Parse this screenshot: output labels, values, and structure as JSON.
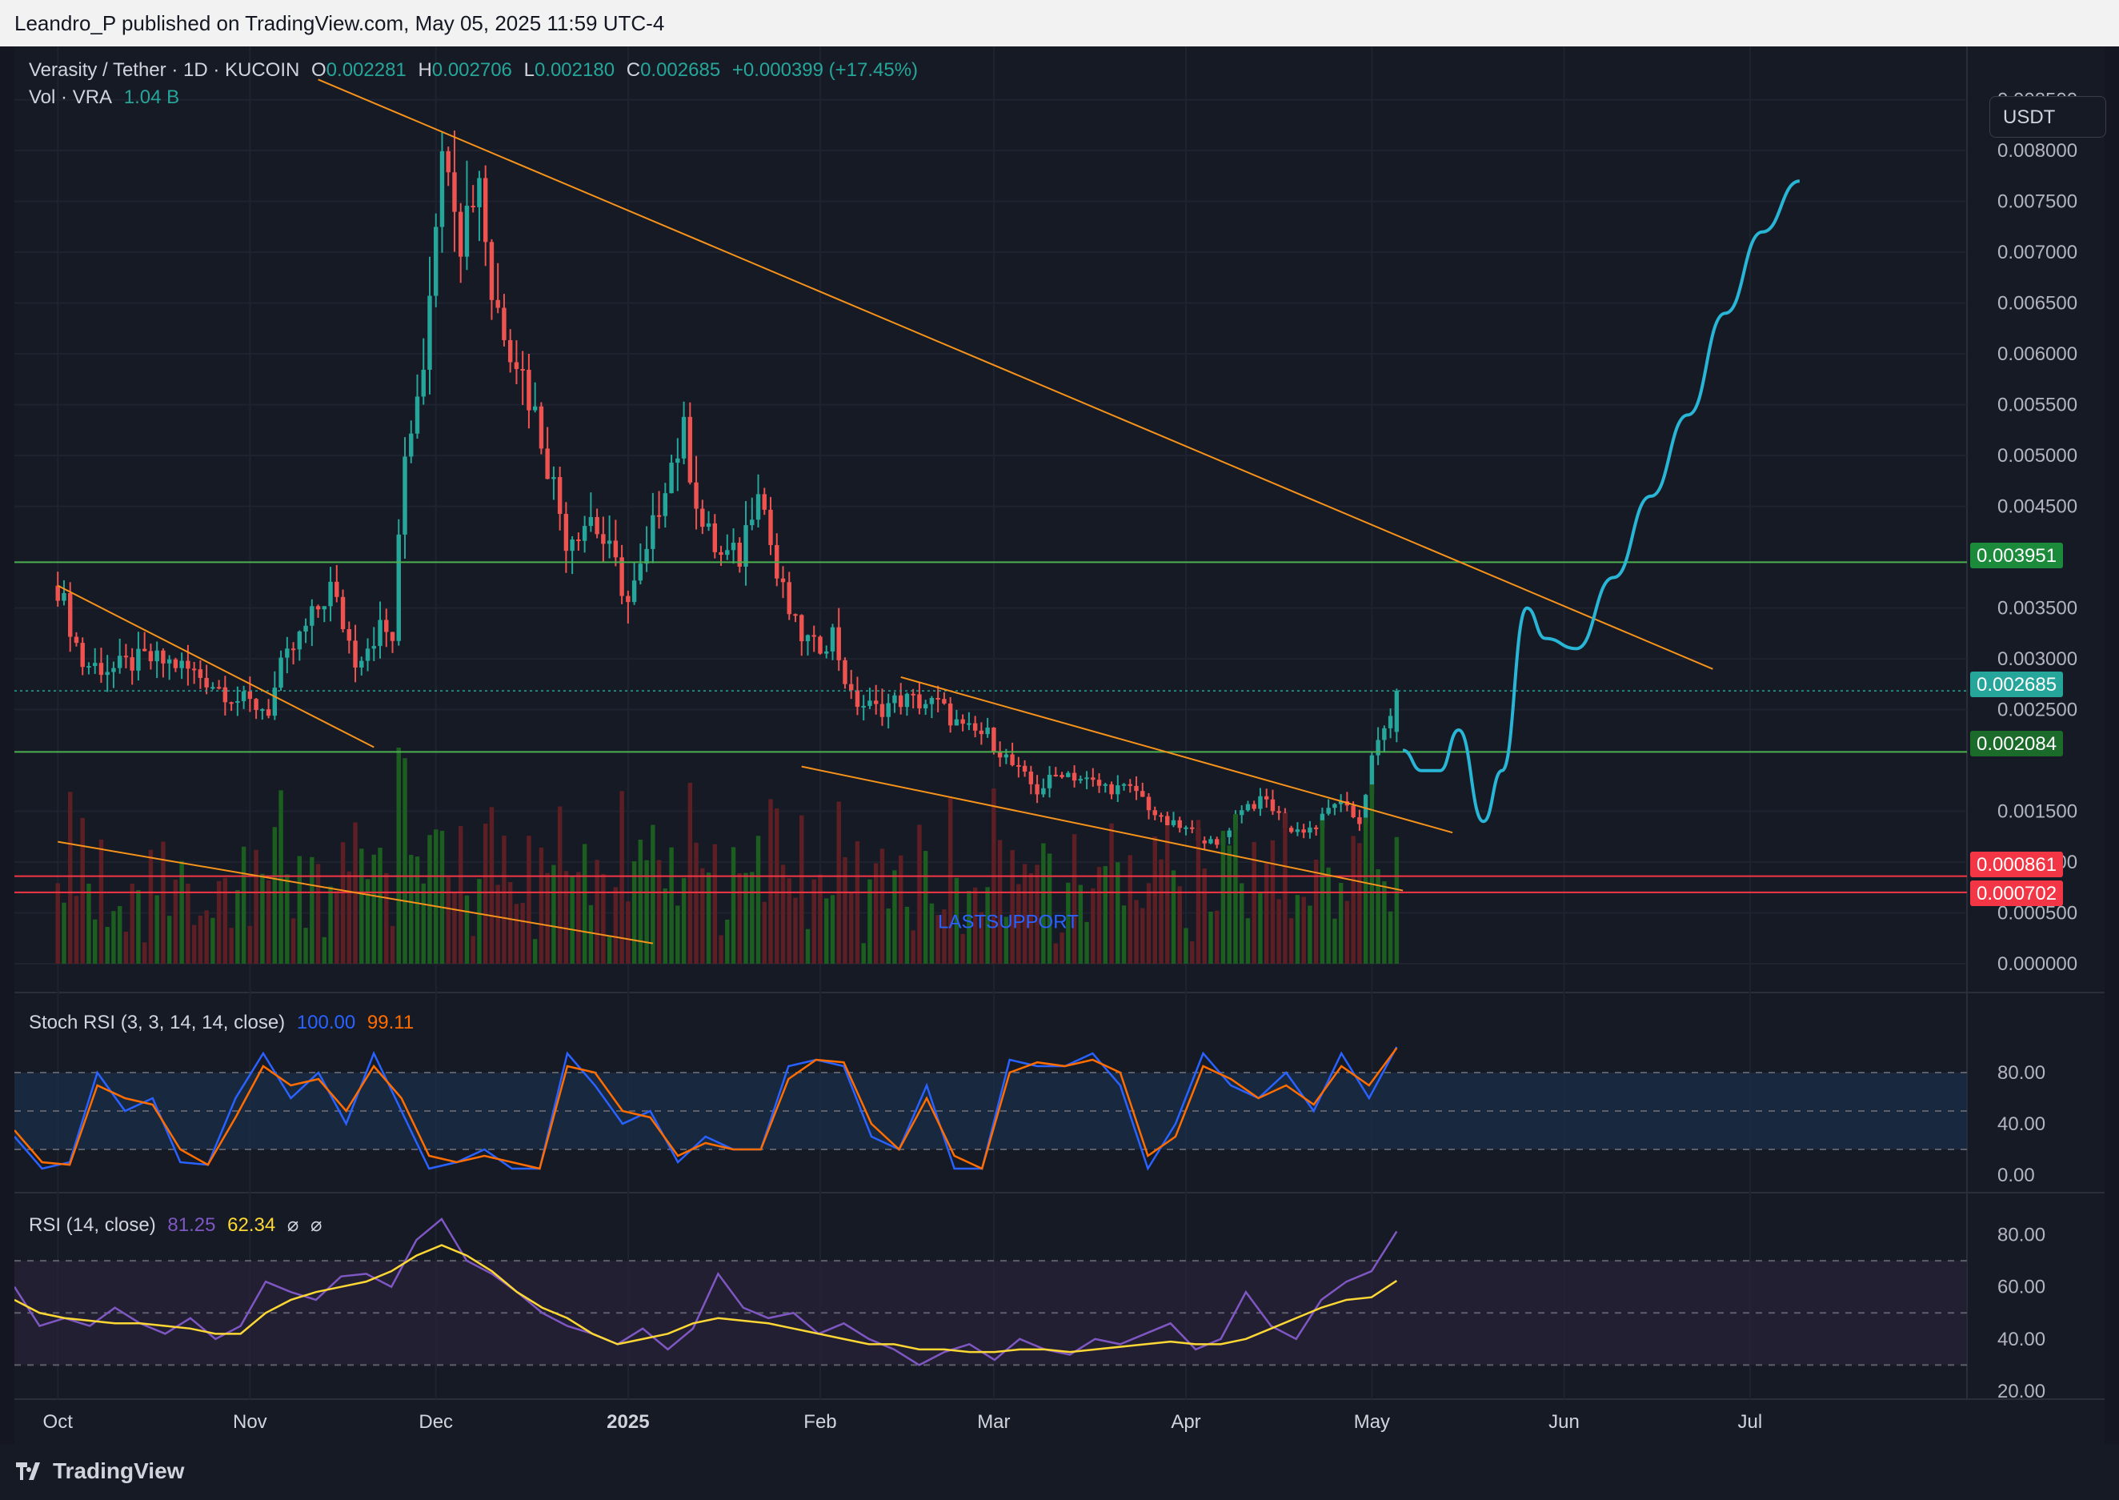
{
  "publisher": "Leandro_P published on TradingView.com, May 05, 2025 11:59 UTC-4",
  "legend": {
    "symbol": "Verasity / Tether · 1D · KUCOIN",
    "o_label": "O",
    "o_value": "0.002281",
    "h_label": "H",
    "h_value": "0.002706",
    "l_label": "L",
    "l_value": "0.002180",
    "c_label": "C",
    "c_value": "0.002685",
    "change": "+0.000399 (+17.45%)",
    "vol_label": "Vol · VRA",
    "vol_value": "1.04 B"
  },
  "currency": "USDT",
  "footer_brand": "TradingView",
  "annotation_text": "LASTSUPPORT",
  "colors": {
    "bg": "#161a25",
    "up": "#26a69a",
    "down": "#ef5350",
    "vol_up": "#1b5e20",
    "vol_down": "#5d1f24",
    "trendline": "#f7931a",
    "forecast": "#29b6d6",
    "level_green": "#4caf50",
    "level_red": "#f23645",
    "stoch_k": "#2962ff",
    "stoch_d": "#ff6d00",
    "rsi": "#7e57c2",
    "rsi_ma": "#fdd835"
  },
  "price_tags": [
    {
      "label": "0.003951",
      "color": "#1b8a3a"
    },
    {
      "label": "0.002685",
      "color": "#26a69a"
    },
    {
      "label": "0.002084",
      "color": "#1b6b2a"
    },
    {
      "label": "0.000861",
      "color": "#f23645"
    },
    {
      "label": "0.000702",
      "color": "#f23645"
    }
  ],
  "chart_data": [
    {
      "type": "candlestick",
      "title": "Verasity / Tether · 1D · KUCOIN",
      "x_labels": [
        "Oct",
        "Nov",
        "Dec",
        "2025",
        "Feb",
        "Mar",
        "Apr",
        "May",
        "Jun",
        "Jul"
      ],
      "y_ticks": [
        "0.008500",
        "0.008000",
        "0.007500",
        "0.007000",
        "0.006500",
        "0.006000",
        "0.005500",
        "0.005000",
        "0.004500",
        "0.003500",
        "0.003000",
        "0.002500",
        "0.001500",
        "0.001000",
        "0.000500",
        "0.000000"
      ],
      "ylim": [
        0,
        0.0086
      ],
      "price_path": [
        [
          "2024-10-01",
          0.00372
        ],
        [
          "2024-10-05",
          0.00295
        ],
        [
          "2024-10-10",
          0.0029
        ],
        [
          "2024-10-15",
          0.003
        ],
        [
          "2024-10-20",
          0.00295
        ],
        [
          "2024-10-25",
          0.0028
        ],
        [
          "2024-10-30",
          0.0026
        ],
        [
          "2024-11-04",
          0.0025
        ],
        [
          "2024-11-06",
          0.0029
        ],
        [
          "2024-11-10",
          0.0033
        ],
        [
          "2024-11-14",
          0.0037
        ],
        [
          "2024-11-18",
          0.003
        ],
        [
          "2024-11-22",
          0.0033
        ],
        [
          "2024-11-24",
          0.0032
        ],
        [
          "2024-11-26",
          0.005
        ],
        [
          "2024-11-29",
          0.006
        ],
        [
          "2024-12-01",
          0.0075
        ],
        [
          "2024-12-03",
          0.0081
        ],
        [
          "2024-12-05",
          0.0072
        ],
        [
          "2024-12-08",
          0.0078
        ],
        [
          "2024-12-10",
          0.0066
        ],
        [
          "2024-12-14",
          0.006
        ],
        [
          "2024-12-18",
          0.0052
        ],
        [
          "2024-12-22",
          0.0042
        ],
        [
          "2024-12-26",
          0.0044
        ],
        [
          "2024-12-30",
          0.0039
        ],
        [
          "2025-01-01",
          0.00355
        ],
        [
          "2025-01-04",
          0.004
        ],
        [
          "2025-01-07",
          0.0048
        ],
        [
          "2025-01-10",
          0.0052
        ],
        [
          "2025-01-13",
          0.0043
        ],
        [
          "2025-01-16",
          0.004
        ],
        [
          "2025-01-19",
          0.004
        ],
        [
          "2025-01-22",
          0.0048
        ],
        [
          "2025-01-25",
          0.0038
        ],
        [
          "2025-01-28",
          0.0033
        ],
        [
          "2025-01-31",
          0.0031
        ],
        [
          "2025-02-03",
          0.00325
        ],
        [
          "2025-02-06",
          0.0026
        ],
        [
          "2025-02-10",
          0.0025
        ],
        [
          "2025-02-14",
          0.0026
        ],
        [
          "2025-02-20",
          0.00255
        ],
        [
          "2025-02-24",
          0.0023
        ],
        [
          "2025-02-28",
          0.00225
        ],
        [
          "2025-03-04",
          0.00195
        ],
        [
          "2025-03-08",
          0.0017
        ],
        [
          "2025-03-12",
          0.0019
        ],
        [
          "2025-03-18",
          0.00175
        ],
        [
          "2025-03-24",
          0.0017
        ],
        [
          "2025-03-28",
          0.0014
        ],
        [
          "2025-04-02",
          0.0013
        ],
        [
          "2025-04-06",
          0.00115
        ],
        [
          "2025-04-10",
          0.00155
        ],
        [
          "2025-04-14",
          0.0016
        ],
        [
          "2025-04-18",
          0.0013
        ],
        [
          "2025-04-22",
          0.00135
        ],
        [
          "2025-04-25",
          0.0016
        ],
        [
          "2025-04-29",
          0.0014
        ],
        [
          "2025-05-01",
          0.002
        ],
        [
          "2025-05-03",
          0.0023
        ],
        [
          "2025-05-05",
          0.002685
        ]
      ],
      "last_ohlc": {
        "open": 0.002281,
        "high": 0.002706,
        "low": 0.00218,
        "close": 0.002685
      },
      "horizontal_levels": [
        0.003951,
        0.002685,
        0.002084,
        0.000861,
        0.000702
      ],
      "trendlines": [
        {
          "from": [
            "2024-11-12",
            0.0087
          ],
          "to": [
            "2025-06-25",
            0.0029
          ]
        },
        {
          "from": [
            "2024-10-01",
            0.00372
          ],
          "to": [
            "2024-11-21",
            0.00213
          ]
        },
        {
          "from": [
            "2025-02-14",
            0.00282
          ],
          "to": [
            "2025-05-14",
            0.00129
          ]
        },
        {
          "from": [
            "2025-01-29",
            0.00194
          ],
          "to": [
            "2025-05-06",
            0.00072
          ]
        },
        {
          "from": [
            "2024-10-01",
            0.0012
          ],
          "to": [
            "2025-01-05",
            0.0002
          ]
        }
      ],
      "forecast_path": [
        [
          "2025-05-06",
          0.0021
        ],
        [
          "2025-05-09",
          0.0019
        ],
        [
          "2025-05-12",
          0.0019
        ],
        [
          "2025-05-15",
          0.0023
        ],
        [
          "2025-05-19",
          0.0014
        ],
        [
          "2025-05-22",
          0.0019
        ],
        [
          "2025-05-26",
          0.0035
        ],
        [
          "2025-05-29",
          0.0032
        ],
        [
          "2025-06-03",
          0.0031
        ],
        [
          "2025-06-09",
          0.0038
        ],
        [
          "2025-06-15",
          0.0046
        ],
        [
          "2025-06-21",
          0.0054
        ],
        [
          "2025-06-27",
          0.0064
        ],
        [
          "2025-07-03",
          0.0072
        ],
        [
          "2025-07-09",
          0.0077
        ]
      ]
    },
    {
      "type": "line",
      "title": "Stoch RSI (3, 3, 14, 14, close)",
      "values_text": [
        "100.00",
        "99.11"
      ],
      "y_ticks": [
        "80.00",
        "40.00",
        "0.00"
      ],
      "ylim": [
        0,
        100
      ],
      "bands": [
        20,
        50,
        80
      ],
      "series": [
        {
          "name": "K",
          "values": [
            30,
            5,
            10,
            80,
            50,
            60,
            10,
            8,
            60,
            95,
            60,
            80,
            40,
            95,
            50,
            5,
            10,
            20,
            5,
            5,
            95,
            70,
            40,
            50,
            10,
            30,
            20,
            20,
            85,
            90,
            85,
            30,
            20,
            70,
            5,
            5,
            90,
            85,
            85,
            95,
            70,
            5,
            40,
            95,
            70,
            60,
            80,
            50,
            95,
            60,
            100
          ]
        },
        {
          "name": "D",
          "values": [
            35,
            10,
            8,
            70,
            60,
            55,
            20,
            8,
            45,
            85,
            70,
            75,
            50,
            85,
            60,
            15,
            10,
            15,
            10,
            5,
            85,
            80,
            50,
            45,
            15,
            25,
            20,
            20,
            75,
            90,
            88,
            40,
            20,
            60,
            15,
            5,
            80,
            88,
            85,
            90,
            80,
            15,
            30,
            85,
            75,
            60,
            70,
            55,
            85,
            70,
            99.11
          ]
        }
      ]
    },
    {
      "type": "line",
      "title": "RSI (14, close)",
      "values_text": [
        "81.25",
        "62.34"
      ],
      "y_ticks": [
        "80.00",
        "60.00",
        "40.00",
        "20.00"
      ],
      "ylim": [
        20,
        82
      ],
      "bands": [
        30,
        50,
        70
      ],
      "series": [
        {
          "name": "RSI",
          "values": [
            60,
            45,
            48,
            45,
            52,
            46,
            42,
            48,
            40,
            45,
            62,
            58,
            55,
            64,
            65,
            60,
            78,
            86,
            70,
            65,
            58,
            50,
            45,
            42,
            38,
            44,
            36,
            44,
            65,
            52,
            48,
            50,
            42,
            46,
            40,
            36,
            30,
            35,
            38,
            32,
            40,
            36,
            34,
            40,
            38,
            42,
            46,
            36,
            40,
            58,
            45,
            40,
            55,
            62,
            66,
            81.25
          ]
        },
        {
          "name": "RSI-MA",
          "values": [
            55,
            50,
            48,
            47,
            46,
            46,
            45,
            44,
            42,
            42,
            50,
            55,
            58,
            60,
            62,
            66,
            72,
            76,
            72,
            66,
            58,
            52,
            48,
            42,
            38,
            40,
            42,
            46,
            48,
            47,
            46,
            44,
            42,
            40,
            38,
            38,
            36,
            36,
            35,
            35,
            36,
            36,
            35,
            36,
            37,
            38,
            39,
            38,
            38,
            40,
            44,
            48,
            52,
            55,
            56,
            62.34
          ]
        }
      ]
    }
  ]
}
